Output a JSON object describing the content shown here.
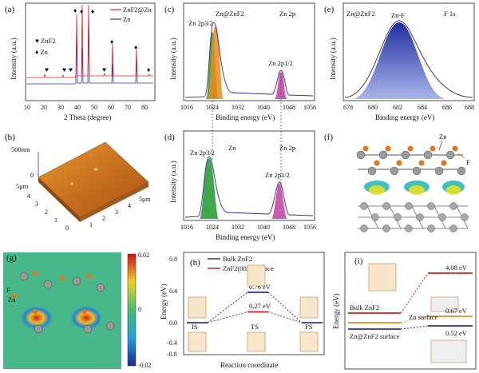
{
  "figure": {
    "a": {
      "label": "(a)",
      "legend": [
        "ZnF2@Zn",
        "Zn"
      ],
      "legend_colors": [
        "#e02020",
        "#2036c8"
      ],
      "markers": [
        "♥ ZnF2",
        "♦ Zn"
      ],
      "ylabel": "Intensity (a.u.)",
      "xlabel": "2 Theta (degree)",
      "xticks": [
        "10",
        "20",
        "30",
        "40",
        "50",
        "60",
        "70",
        "80"
      ]
    },
    "b": {
      "label": "(b)",
      "zlabel": "500nm",
      "z0": "0",
      "axis_left": "5μm",
      "left_ticks": [
        "4",
        "3",
        "2",
        "1",
        "0"
      ],
      "right_ticks": [
        "1",
        "2",
        "3",
        "4",
        "5μm"
      ]
    },
    "c": {
      "label": "(c)",
      "title": "Zn@ZnF2",
      "orbital": "Zn 2p",
      "peak1": "Zn 2p3/2",
      "peak2": "Zn 2p1/2",
      "ylabel": "Intensity (a.u.)",
      "xlabel": "Binding energy (eV)",
      "xticks": [
        "1016",
        "1024",
        "1032",
        "1040",
        "1048",
        "1056"
      ]
    },
    "d": {
      "label": "(d)",
      "title": "Zn",
      "orbital": "Zn 2p",
      "peak1": "Zn 2p3/2",
      "peak2": "Zn 2p1/2",
      "ylabel": "Intensity (a.u.)",
      "xlabel": "Binding energy (eV)",
      "xticks": [
        "1016",
        "1024",
        "1032",
        "1040",
        "1048",
        "1056"
      ]
    },
    "e": {
      "label": "(e)",
      "title": "Zn@ZnF2",
      "orbital": "F 1s",
      "peak": "Zn-F",
      "ylabel": "Intensity (a.u.)",
      "xlabel": "Binding energy (eV)",
      "xticks": [
        "678",
        "680",
        "682",
        "684",
        "686",
        "688"
      ]
    },
    "f": {
      "label": "(f)",
      "atom_zn": "Zn",
      "atom_f": "F"
    },
    "g": {
      "label": "(g)",
      "atom_f": "F",
      "atom_zn": "Zn",
      "scale_ticks": [
        "0.02",
        "0",
        "-0.02"
      ]
    },
    "h": {
      "label": "(h)",
      "legend": [
        "Bulk ZnF2",
        "ZnF2(002) surface"
      ],
      "legend_colors": [
        "#3a2aa0",
        "#d02020"
      ],
      "ylabel": "Energy (eV)",
      "xlabel": "Reaction coordinate",
      "yticks": [
        "0.8",
        "0.4",
        "0.0",
        "-0.4",
        "-0.8"
      ],
      "states": [
        "IS",
        "TS",
        "FS"
      ],
      "barrier_bulk": "0.76 eV",
      "barrier_surface": "0.27 eV"
    },
    "i": {
      "label": "(i)",
      "ylabel": "Energy (eV)",
      "series": [
        "Bulk ZnF2",
        "Zn surface",
        "Zn@ZnF2 surface"
      ],
      "series_colors": [
        "#d02020",
        "#f08a1a",
        "#3a2aa0"
      ],
      "values": [
        "4.08 eV",
        "0.67 eV",
        "0.52 eV"
      ]
    }
  }
}
